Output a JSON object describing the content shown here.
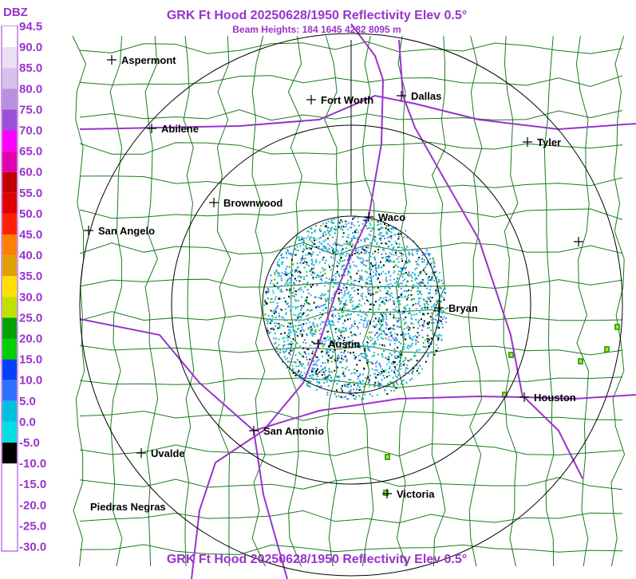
{
  "header": {
    "title": "GRK Ft Hood 20250628/1950 Reflectivity Elev 0.5°",
    "subtitle": "Beam Heights: 184 1645 4282 8095 m"
  },
  "legend": {
    "unit": "DBZ",
    "labels": [
      "94.5",
      "90.0",
      "85.0",
      "80.0",
      "75.0",
      "70.0",
      "65.0",
      "60.0",
      "55.0",
      "50.0",
      "45.0",
      "40.0",
      "35.0",
      "30.0",
      "25.0",
      "20.0",
      "15.0",
      "10.0",
      "5.0",
      "0.0",
      "-5.0",
      "-10.0",
      "-15.0",
      "-20.0",
      "-25.0",
      "-30.0"
    ]
  },
  "cities": [
    "Aspermont",
    "Abilene",
    "Fort Worth",
    "Dallas",
    "Tyler",
    "Brownwood",
    "Waco",
    "San Angelo",
    "Bryan",
    "Austin",
    "Houston",
    "San Antonio",
    "Uvalde",
    "Victoria",
    "Piedras Negras"
  ],
  "footer": {
    "title": "GRK Ft Hood 20250628/1950 Reflectivity Elev 0.5°"
  }
}
